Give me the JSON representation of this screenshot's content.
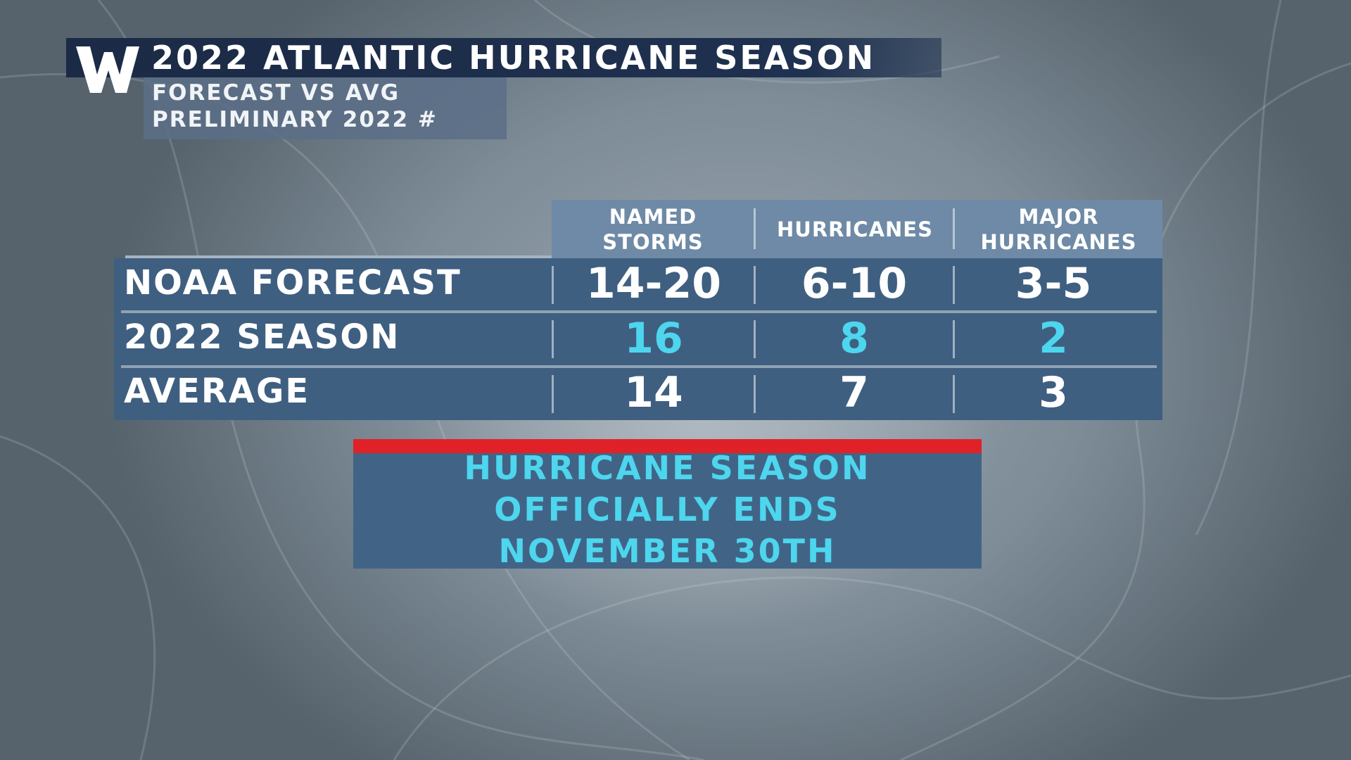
{
  "header": {
    "title": "2022 ATLANTIC HURRICANE SEASON",
    "subtitle_lines": [
      "FORECAST VS AVG",
      "PRELIMINARY 2022 #"
    ]
  },
  "table": {
    "columns": [
      [
        "NAMED",
        "STORMS"
      ],
      [
        "HURRICANES"
      ],
      [
        "MAJOR",
        "HURRICANES"
      ]
    ],
    "rows": [
      {
        "label": "NOAA FORECAST",
        "values": [
          "14-20",
          "6-10",
          "3-5"
        ],
        "highlight": false
      },
      {
        "label": "2022 SEASON",
        "values": [
          "16",
          "8",
          "2"
        ],
        "highlight": true
      },
      {
        "label": "AVERAGE",
        "values": [
          "14",
          "7",
          "3"
        ],
        "highlight": false
      }
    ]
  },
  "footer": {
    "lines": [
      "HURRICANE SEASON",
      "OFFICIALLY ENDS",
      "NOVEMBER 30TH"
    ]
  },
  "colors": {
    "header_bar": "#1b2a45",
    "table_bg": "#3f5f81",
    "highlight_text": "#4dd6ee",
    "accent_red": "#e02128"
  },
  "icons": {
    "logo": "weather-channel-w-logo"
  }
}
